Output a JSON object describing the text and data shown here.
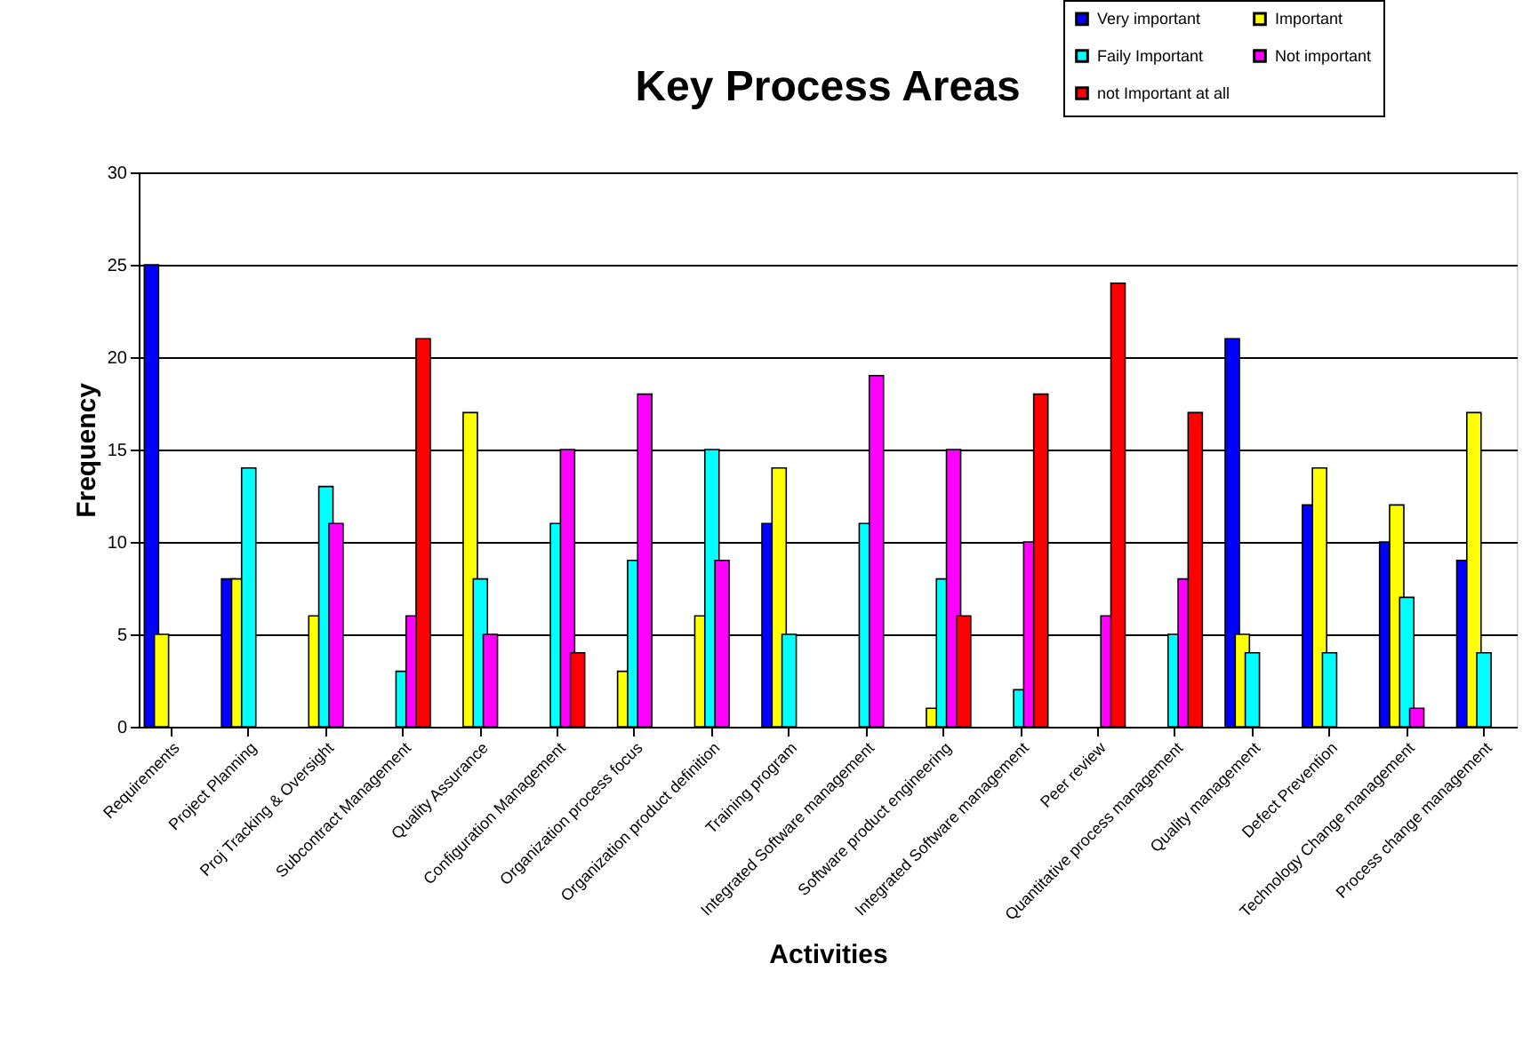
{
  "chart_data": {
    "type": "bar",
    "title": "Key Process Areas",
    "xlabel": "Activities",
    "ylabel": "Frequency",
    "categories": [
      "Requirements",
      "Project Planning",
      "Proj Tracking & Oversight",
      "Subcontract Management",
      "Quality Assurance",
      "Configuration Management",
      "Organization process focus",
      "Organization product definition",
      "Training program",
      "Integrated Software management",
      "Software product engineering",
      "Integrated Software management",
      "Peer review",
      "Quantitative process management",
      "Quality management",
      "Defect Prevention",
      "Technology Change management",
      "Process change management"
    ],
    "series": [
      {
        "name": "Very important",
        "color": "#0000ff",
        "values": [
          25,
          8,
          null,
          null,
          null,
          null,
          null,
          null,
          11,
          null,
          null,
          null,
          null,
          null,
          21,
          12,
          10,
          9
        ]
      },
      {
        "name": "Important",
        "color": "#ffff00",
        "values": [
          5,
          8,
          6,
          null,
          17,
          null,
          3,
          6,
          14,
          null,
          1,
          null,
          null,
          null,
          5,
          14,
          12,
          17
        ]
      },
      {
        "name": "Faily Important",
        "color": "#00ffff",
        "values": [
          null,
          14,
          13,
          3,
          8,
          11,
          9,
          15,
          5,
          11,
          8,
          2,
          null,
          5,
          4,
          4,
          7,
          4
        ]
      },
      {
        "name": "Not important",
        "color": "#ff00ff",
        "values": [
          null,
          null,
          11,
          6,
          5,
          15,
          18,
          9,
          null,
          19,
          15,
          10,
          6,
          8,
          null,
          null,
          1,
          null
        ]
      },
      {
        "name": "not Important at all",
        "color": "#ff0000",
        "values": [
          null,
          null,
          null,
          21,
          null,
          4,
          null,
          null,
          null,
          null,
          6,
          18,
          24,
          17,
          null,
          null,
          null,
          null
        ]
      }
    ],
    "ylim": [
      0,
      30
    ],
    "yticks": [
      0,
      5,
      10,
      15,
      20,
      25,
      30
    ],
    "grid": "y",
    "legend": "top right"
  }
}
